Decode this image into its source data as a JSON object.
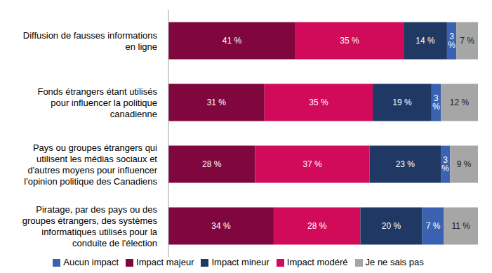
{
  "chart_data": {
    "type": "bar",
    "orientation": "horizontal",
    "stacked": true,
    "data_labels": true,
    "tick_labels": "y",
    "grid": false,
    "legend": "bottom",
    "xlim": [
      0,
      100
    ],
    "categories": [
      "Diffusion de fausses informations en ligne",
      "Fonds étrangers étant utilisés pour influencer la politique canadienne",
      "Pays ou groupes étrangers qui utilisent les médias sociaux et d'autres moyens pour influencer l'opinion politique des Canadiens",
      "Piratage, par des pays ou des groupes étrangers, des systèmes informatiques utilisés pour la conduite de l'élection"
    ],
    "series": [
      {
        "name": "Impact majeur",
        "color": "#80073d",
        "values": [
          41,
          31,
          28,
          34
        ],
        "value_labels": [
          "41 %",
          "31 %",
          "28 %",
          "34 %"
        ]
      },
      {
        "name": "Impact modéré",
        "color": "#d10a5a",
        "values": [
          35,
          35,
          37,
          28
        ],
        "value_labels": [
          "35 %",
          "35 %",
          "37 %",
          "28 %"
        ]
      },
      {
        "name": "Impact mineur",
        "color": "#1f3864",
        "values": [
          14,
          19,
          23,
          20
        ],
        "value_labels": [
          "14 %",
          "19 %",
          "23 %",
          "20 %"
        ]
      },
      {
        "name": "Aucun impact",
        "color": "#3a62b0",
        "values": [
          3,
          3,
          3,
          7
        ],
        "value_labels": [
          "3 %",
          "3 %",
          "3 %",
          "7 %"
        ]
      },
      {
        "name": "Je ne sais pas",
        "color": "#a6a6a6",
        "values": [
          7,
          12,
          9,
          11
        ],
        "value_labels": [
          "7 %",
          "12 %",
          "9 %",
          "11 %"
        ]
      }
    ]
  }
}
